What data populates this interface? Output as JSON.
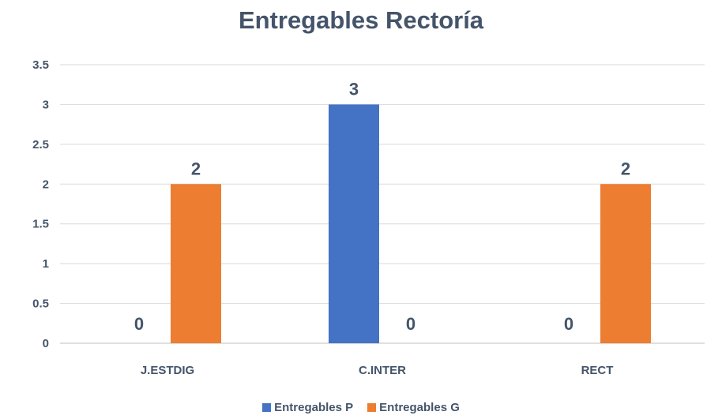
{
  "chart_data": {
    "type": "bar",
    "title": "Entregables Rectoría",
    "categories": [
      "J.ESTDIG",
      "C.INTER",
      "RECT"
    ],
    "series": [
      {
        "name": "Entregables P",
        "values": [
          0,
          3,
          0
        ],
        "color": "#4472c4"
      },
      {
        "name": "Entregables G",
        "values": [
          2,
          0,
          2
        ],
        "color": "#ed7d31"
      }
    ],
    "ylim": [
      0,
      3.5
    ],
    "yticks": [
      "0",
      "0.5",
      "1",
      "1.5",
      "2",
      "2.5",
      "3",
      "3.5"
    ],
    "grid": true,
    "legend": "bottom",
    "data_labels": true
  }
}
